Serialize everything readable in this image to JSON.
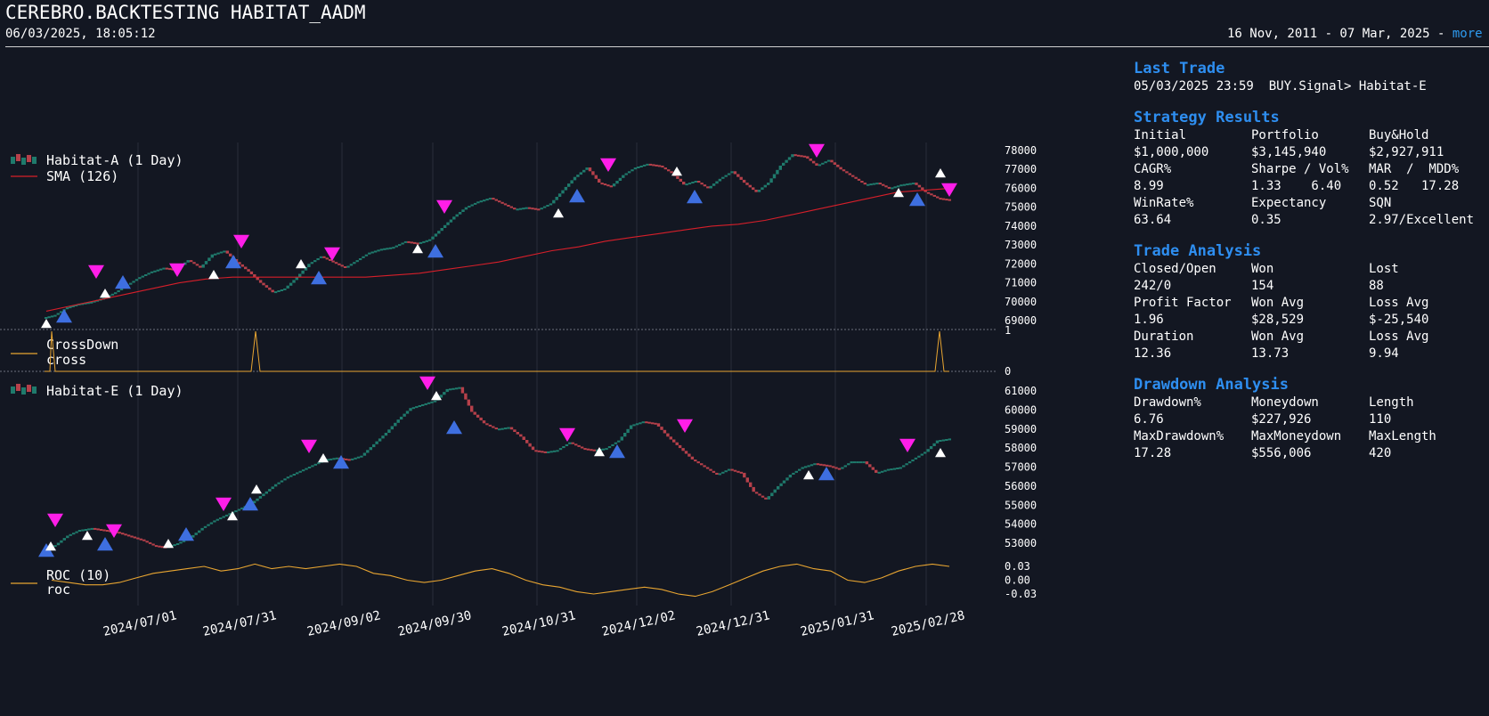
{
  "header": {
    "title": "CEREBRO.BACKTESTING HABITAT_AADM",
    "timestamp": "06/03/2025, 18:05:12",
    "date_range": "16 Nov, 2011 - 07 Mar, 2025 - ",
    "more_label": "more"
  },
  "colors": {
    "background": "#131722",
    "up": "#1f7a6c",
    "down": "#b6404a",
    "sma": "#d61f2a",
    "indicator": "#e8a531",
    "buy_marker": "#3e6fe0",
    "sell_marker": "#ff1ee8",
    "accent": "#2e8ef0"
  },
  "legends": {
    "top_series": "Habitat-A (1 Day)",
    "top_sma": "SMA (126)",
    "cross_name": "CrossDown",
    "cross_line": "cross",
    "bottom_series": "Habitat-E (1 Day)",
    "roc_name": "ROC (10)",
    "roc_line": "roc"
  },
  "axes": {
    "top_yticks": [
      "78000",
      "77000",
      "76000",
      "75000",
      "74000",
      "73000",
      "72000",
      "71000",
      "70000",
      "69000"
    ],
    "cross_yticks": [
      "1",
      "0"
    ],
    "bottom_yticks": [
      "61000",
      "60000",
      "59000",
      "58000",
      "57000",
      "56000",
      "55000",
      "54000",
      "53000"
    ],
    "roc_yticks": [
      "0.03",
      "0.00",
      "-0.03"
    ],
    "date_ticks": [
      "2024/07/01",
      "2024/07/31",
      "2024/09/02",
      "2024/09/30",
      "2024/10/31",
      "2024/12/02",
      "2024/12/31",
      "2025/01/31",
      "2025/02/28"
    ]
  },
  "stats": {
    "last_trade": {
      "title": "Last Trade",
      "text": "05/03/2025 23:59  BUY.Signal> Habitat-E"
    },
    "strategy": {
      "title": "Strategy Results",
      "rows": [
        [
          "Initial",
          "Portfolio",
          "Buy&Hold"
        ],
        [
          "$1,000,000",
          "$3,145,940",
          "$2,927,911"
        ],
        [
          "CAGR%",
          "Sharpe / Vol%",
          "MAR  /  MDD%"
        ],
        [
          "8.99",
          "1.33    6.40",
          "0.52   17.28"
        ],
        [
          "WinRate%",
          "Expectancy",
          "SQN"
        ],
        [
          "63.64",
          "0.35",
          "2.97/Excellent"
        ]
      ]
    },
    "trade": {
      "title": "Trade Analysis",
      "rows": [
        [
          "Closed/Open",
          "Won",
          "Lost"
        ],
        [
          "242/0",
          "154",
          "88"
        ],
        [
          "Profit Factor",
          "Won Avg",
          "Loss Avg"
        ],
        [
          "1.96",
          "$28,529",
          "$-25,540"
        ],
        [
          "Duration",
          "Won Avg",
          "Loss Avg"
        ],
        [
          "12.36",
          "13.73",
          "9.94"
        ]
      ]
    },
    "drawdown": {
      "title": "Drawdown Analysis",
      "rows": [
        [
          "Drawdown%",
          "Moneydown",
          "Length"
        ],
        [
          "6.76",
          "$227,926",
          "110"
        ],
        [
          "MaxDrawdown%",
          "MaxMoneydown",
          "MaxLength"
        ],
        [
          "17.28",
          "$556,006",
          "420"
        ]
      ]
    }
  },
  "chart_data": [
    {
      "type": "line",
      "title": "Habitat-A (1 Day)",
      "series": [
        {
          "name": "Habitat-A (1 Day)",
          "values": [
            69300,
            69700,
            69900,
            70000,
            70200,
            70500,
            70900,
            71300,
            71600,
            71800,
            71700,
            72200,
            71800,
            72500,
            72700,
            72100,
            71600,
            71000,
            70500,
            70700,
            71300,
            72000,
            72400,
            72100,
            71800,
            72200,
            72600,
            72800,
            72900,
            73200,
            73100,
            73300,
            73900,
            74500,
            75000,
            75300,
            75500,
            75200,
            74900,
            75000,
            74900,
            75200,
            75900,
            76600,
            77100,
            76300,
            76100,
            76700,
            77100,
            77300,
            77200,
            76800,
            76200,
            76400,
            76000,
            76500,
            76900,
            76300,
            75800,
            76300,
            77200,
            77800,
            77700,
            77200,
            77500,
            77000,
            76600,
            76200,
            76300,
            76000,
            76200,
            76300,
            75800,
            75500,
            75400
          ]
        },
        {
          "name": "SMA (126)",
          "values": [
            69500,
            69800,
            70100,
            70400,
            70700,
            71000,
            71200,
            71300,
            71300,
            71300,
            71300,
            71300,
            71300,
            71400,
            71500,
            71700,
            71900,
            72100,
            72400,
            72700,
            72900,
            73200,
            73400,
            73600,
            73800,
            74000,
            74100,
            74300,
            74600,
            74900,
            75200,
            75500,
            75800,
            75900,
            76000
          ]
        }
      ],
      "ylim": [
        68500,
        78500
      ]
    },
    {
      "type": "line",
      "title": "CrossDown",
      "series": [
        {
          "name": "cross",
          "values": [
            1,
            0,
            1,
            0,
            1,
            0
          ]
        }
      ],
      "ylim": [
        0,
        1
      ]
    },
    {
      "type": "line",
      "title": "Habitat-E (1 Day)",
      "series": [
        {
          "name": "Habitat-E (1 Day)",
          "values": [
            52900,
            53400,
            53700,
            53800,
            53700,
            53600,
            53400,
            53200,
            52900,
            52800,
            53000,
            53300,
            53800,
            54200,
            54500,
            54800,
            55100,
            55600,
            56100,
            56500,
            56800,
            57100,
            57400,
            57500,
            57400,
            57600,
            58200,
            58800,
            59500,
            60100,
            60300,
            60500,
            61100,
            61200,
            59900,
            59300,
            59000,
            59100,
            58600,
            57900,
            57800,
            57900,
            58300,
            58000,
            57900,
            58000,
            58400,
            59200,
            59400,
            59300,
            58600,
            58000,
            57400,
            57000,
            56600,
            56900,
            56700,
            55700,
            55300,
            56000,
            56600,
            57000,
            57200,
            57100,
            56900,
            57300,
            57300,
            56700,
            56900,
            57000,
            57400,
            57800,
            58400,
            58500
          ]
        }
      ],
      "ylim": [
        52300,
        61700
      ]
    },
    {
      "type": "line",
      "title": "ROC (10)",
      "series": [
        {
          "name": "roc",
          "values": [
            0.0,
            -0.005,
            -0.01,
            -0.01,
            -0.005,
            0.005,
            0.015,
            0.02,
            0.025,
            0.03,
            0.02,
            0.025,
            0.035,
            0.025,
            0.03,
            0.025,
            0.03,
            0.035,
            0.03,
            0.015,
            0.01,
            0.0,
            -0.005,
            0.0,
            0.01,
            0.02,
            0.025,
            0.015,
            0.0,
            -0.01,
            -0.015,
            -0.025,
            -0.03,
            -0.025,
            -0.02,
            -0.015,
            -0.02,
            -0.03,
            -0.035,
            -0.025,
            -0.01,
            0.005,
            0.02,
            0.03,
            0.035,
            0.025,
            0.02,
            0.0,
            -0.005,
            0.005,
            0.02,
            0.03,
            0.035,
            0.03
          ]
        }
      ],
      "ylim": [
        -0.04,
        0.04
      ]
    }
  ]
}
